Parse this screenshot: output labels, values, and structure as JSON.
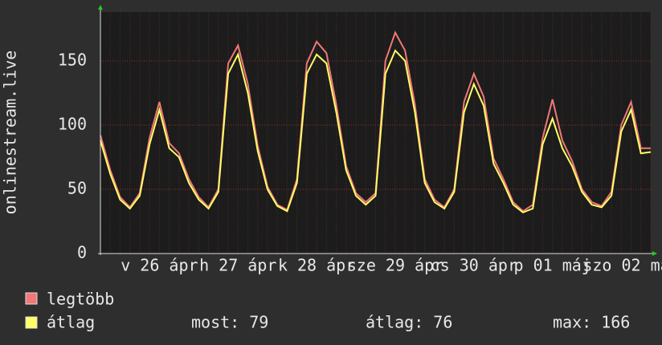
{
  "chart_data": {
    "type": "line",
    "y_label": "onlinestream.live",
    "categories": [
      null,
      null,
      null,
      null,
      null,
      null,
      "v 26 ápr",
      null,
      null,
      null,
      null,
      null,
      null,
      null,
      "h 27 ápr",
      null,
      null,
      null,
      null,
      null,
      null,
      null,
      "k 28 ápr",
      null,
      null,
      null,
      null,
      null,
      null,
      null,
      "sze 29 ápr",
      null,
      null,
      null,
      null,
      null,
      null,
      null,
      "cs 30 ápr",
      null,
      null,
      null,
      null,
      null,
      null,
      null,
      "p 01 máj",
      null,
      null,
      null,
      null,
      null,
      null,
      null,
      "szo 02 máj",
      null,
      null
    ],
    "series": [
      {
        "name": "legtöbb",
        "color": "#f07878",
        "values": [
          92,
          65,
          44,
          36,
          47,
          90,
          118,
          86,
          78,
          58,
          44,
          36,
          50,
          148,
          162,
          132,
          84,
          52,
          38,
          34,
          58,
          148,
          165,
          156,
          116,
          68,
          47,
          40,
          47,
          150,
          172,
          158,
          116,
          58,
          42,
          36,
          50,
          118,
          140,
          122,
          74,
          58,
          40,
          33,
          38,
          90,
          120,
          88,
          72,
          50,
          40,
          37,
          48,
          100,
          118,
          82,
          82
        ]
      },
      {
        "name": "átlag",
        "color": "#ffff66",
        "values": [
          88,
          62,
          42,
          35,
          45,
          85,
          112,
          82,
          75,
          55,
          42,
          35,
          48,
          140,
          155,
          125,
          80,
          50,
          37,
          33,
          55,
          140,
          155,
          148,
          110,
          65,
          45,
          38,
          45,
          140,
          158,
          150,
          110,
          55,
          40,
          35,
          48,
          110,
          132,
          115,
          70,
          55,
          38,
          32,
          35,
          85,
          105,
          82,
          68,
          48,
          38,
          36,
          45,
          95,
          112,
          78,
          79
        ]
      }
    ],
    "legend_stats": [
      "most: 79",
      "átlag: 76",
      "max: 166"
    ],
    "ylim": [
      0,
      188
    ],
    "yticks": [
      0,
      50,
      100,
      150
    ],
    "grid": true
  }
}
